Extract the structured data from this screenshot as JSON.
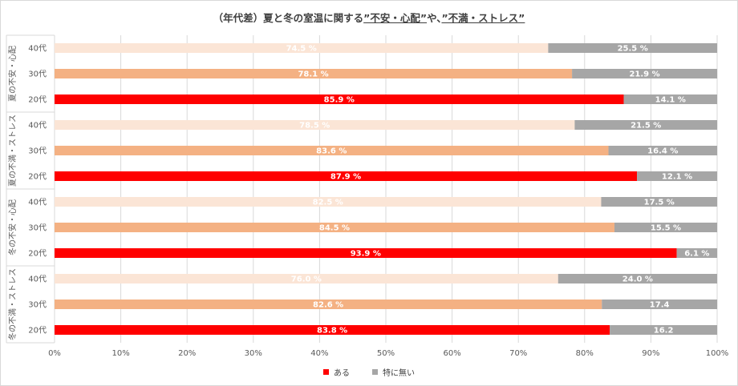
{
  "chart_data": {
    "type": "bar",
    "stacked": true,
    "orientation": "horizontal",
    "title_parts": [
      "（年代差）夏と冬の室温に関する",
      "”不安・心配”",
      "や、",
      "”不満・ストレス”"
    ],
    "groups": [
      {
        "label": "夏の不安・心配",
        "rows": [
          {
            "category": "40代",
            "values": [
              74.5,
              25.5
            ],
            "labels": [
              "74.5 %",
              "25.5 %"
            ]
          },
          {
            "category": "30代",
            "values": [
              78.1,
              21.9
            ],
            "labels": [
              "78.1 %",
              "21.9 %"
            ]
          },
          {
            "category": "20代",
            "values": [
              85.9,
              14.1
            ],
            "labels": [
              "85.9 %",
              "14.1 %"
            ]
          }
        ]
      },
      {
        "label": "夏の不満・ストレス",
        "rows": [
          {
            "category": "40代",
            "values": [
              78.5,
              21.5
            ],
            "labels": [
              "78.5 %",
              "21.5 %"
            ]
          },
          {
            "category": "30代",
            "values": [
              83.6,
              16.4
            ],
            "labels": [
              "83.6 %",
              "16.4 %"
            ]
          },
          {
            "category": "20代",
            "values": [
              87.9,
              12.1
            ],
            "labels": [
              "87.9 %",
              "12.1 %"
            ]
          }
        ]
      },
      {
        "label": "冬の不安・心配",
        "rows": [
          {
            "category": "40代",
            "values": [
              82.5,
              17.5
            ],
            "labels": [
              "82.5 %",
              "17.5 %"
            ]
          },
          {
            "category": "30代",
            "values": [
              84.5,
              15.5
            ],
            "labels": [
              "84.5 %",
              "15.5 %"
            ]
          },
          {
            "category": "20代",
            "values": [
              93.9,
              6.1
            ],
            "labels": [
              "93.9 %",
              "6.1 %"
            ]
          }
        ]
      },
      {
        "label": "冬の不満・ストレス",
        "rows": [
          {
            "category": "40代",
            "values": [
              76.0,
              24.0
            ],
            "labels": [
              "76.0 %",
              "24.0 %"
            ]
          },
          {
            "category": "30代",
            "values": [
              82.6,
              17.4
            ],
            "labels": [
              "82.6 %",
              "17.4"
            ]
          },
          {
            "category": "20代",
            "values": [
              83.8,
              16.2
            ],
            "labels": [
              "83.8 %",
              "16.2"
            ]
          }
        ]
      }
    ],
    "series": [
      {
        "name": "ある"
      },
      {
        "name": "特に無い"
      }
    ],
    "age_colors": {
      "40代": "#fbe5d6",
      "30代": "#f4b183",
      "20代": "#ff0000"
    },
    "other_color": "#a6a6a6",
    "legend_colors": [
      "#ff0000",
      "#a6a6a6"
    ],
    "x_ticks": [
      "0%",
      "10%",
      "20%",
      "30%",
      "40%",
      "50%",
      "60%",
      "70%",
      "80%",
      "90%",
      "100%"
    ],
    "xlim": [
      0,
      100
    ],
    "grid": true,
    "legend_position": "bottom"
  }
}
